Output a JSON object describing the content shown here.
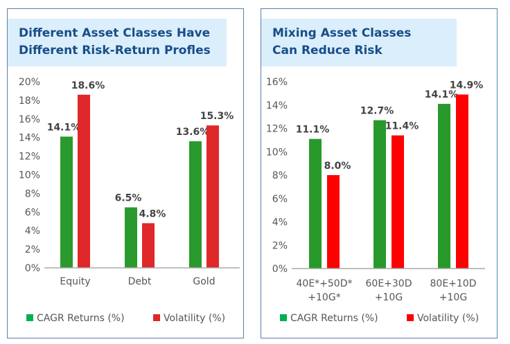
{
  "chart_data": [
    {
      "type": "bar",
      "title": "Different Asset Classes Have Different Risk-Return Profles",
      "categories": [
        [
          "Equity"
        ],
        [
          "Debt"
        ],
        [
          "Gold"
        ]
      ],
      "series": [
        {
          "name": "CAGR Returns (%)",
          "values": [
            14.1,
            6.5,
            13.6
          ],
          "color": "#2a9a2e"
        },
        {
          "name": "Volatility (%)",
          "values": [
            18.6,
            4.8,
            15.3
          ],
          "color": "#e0282a"
        }
      ],
      "data_labels": [
        [
          "14.1%",
          "6.5%",
          "13.6%"
        ],
        [
          "18.6%",
          "4.8%",
          "15.3%"
        ]
      ],
      "ylim": [
        0,
        20
      ],
      "yticks": [
        "0%",
        "2%",
        "4%",
        "6%",
        "8%",
        "10%",
        "12%",
        "14%",
        "16%",
        "18%",
        "20%"
      ],
      "legend": "bottom",
      "grid": false
    },
    {
      "type": "bar",
      "title": "Mixing Asset Classes Can Reduce Risk",
      "categories": [
        [
          "40E*+50D*",
          "+10G*"
        ],
        [
          "60E+30D",
          "+10G"
        ],
        [
          "80E+10D",
          "+10G"
        ]
      ],
      "series": [
        {
          "name": "CAGR Returns (%)",
          "values": [
            11.1,
            12.7,
            14.1
          ],
          "color": "#279a2b"
        },
        {
          "name": "Volatility (%)",
          "values": [
            8.0,
            11.4,
            14.9
          ],
          "color": "#ff0000"
        }
      ],
      "data_labels": [
        [
          "11.1%",
          "12.7%",
          "14.1%"
        ],
        [
          "8.0%",
          "11.4%",
          "14.9%"
        ]
      ],
      "ylim": [
        0,
        16
      ],
      "yticks": [
        "0%",
        "2%",
        "4%",
        "6%",
        "8%",
        "10%",
        "12%",
        "14%",
        "16%"
      ],
      "legend": "bottom",
      "grid": false
    }
  ],
  "legend_colors": {
    "CAGR Returns (%)": "#00b050",
    "Volatility (%)": "#e0282a"
  }
}
